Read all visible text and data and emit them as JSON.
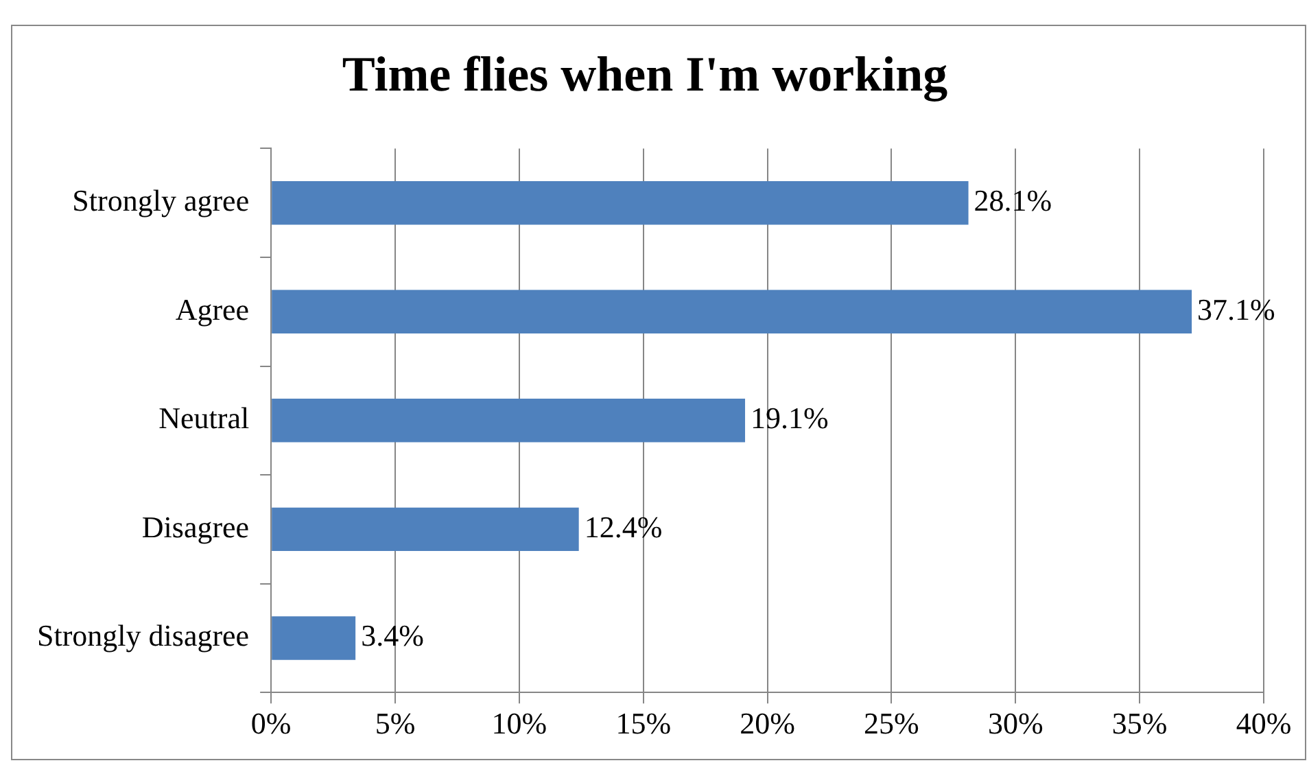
{
  "chart_data": {
    "type": "bar",
    "orientation": "horizontal",
    "title": "Time flies when I'm working",
    "categories": [
      "Strongly agree",
      "Agree",
      "Neutral",
      "Disagree",
      "Strongly disagree"
    ],
    "values": [
      28.1,
      37.1,
      19.1,
      12.4,
      3.4
    ],
    "color": "#4f81bd",
    "value_labels": [
      "28.1%",
      "37.1%",
      "19.1%",
      "12.4%",
      "3.4%"
    ],
    "xlim": [
      0,
      40
    ],
    "xticks": [
      {
        "value": 0,
        "label": "0%"
      },
      {
        "value": 5,
        "label": "5%"
      },
      {
        "value": 10,
        "label": "10%"
      },
      {
        "value": 15,
        "label": "15%"
      },
      {
        "value": 20,
        "label": "20%"
      },
      {
        "value": 25,
        "label": "25%"
      },
      {
        "value": 30,
        "label": "30%"
      },
      {
        "value": 35,
        "label": "35%"
      },
      {
        "value": 40,
        "label": "40%"
      }
    ],
    "grid": "x",
    "legend": false
  }
}
